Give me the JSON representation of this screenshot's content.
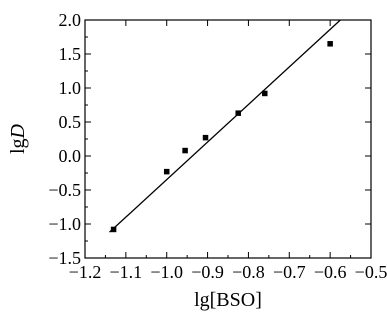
{
  "chart_data": {
    "type": "scatter",
    "xlabel": "lg[BSO]",
    "ylabel_prefix": "lg",
    "ylabel_var": "D",
    "xlim": [
      -1.2,
      -0.5
    ],
    "ylim": [
      -1.5,
      2.0
    ],
    "x_ticks": [
      -1.2,
      -1.1,
      -1.0,
      -0.9,
      -0.8,
      -0.7,
      -0.6,
      -0.5
    ],
    "x_tick_labels": [
      "−1.2",
      "−1.1",
      "−1.0",
      "−0.9",
      "−0.8",
      "−0.7",
      "−0.6",
      "−0.5"
    ],
    "y_ticks": [
      -1.5,
      -1.0,
      -0.5,
      0.0,
      0.5,
      1.0,
      1.5,
      2.0
    ],
    "y_tick_labels": [
      "−1.5",
      "−1.0",
      "−0.5",
      "0.0",
      "0.5",
      "1.0",
      "1.5",
      "2.0"
    ],
    "grid": false,
    "points": [
      {
        "x": -1.13,
        "y": -1.08
      },
      {
        "x": -1.0,
        "y": -0.23
      },
      {
        "x": -0.955,
        "y": 0.08
      },
      {
        "x": -0.905,
        "y": 0.27
      },
      {
        "x": -0.825,
        "y": 0.63
      },
      {
        "x": -0.76,
        "y": 0.92
      },
      {
        "x": -0.6,
        "y": 1.65
      }
    ],
    "fit_line": {
      "x": [
        -1.14,
        -0.575
      ],
      "y": [
        -1.12,
        2.0
      ]
    }
  }
}
